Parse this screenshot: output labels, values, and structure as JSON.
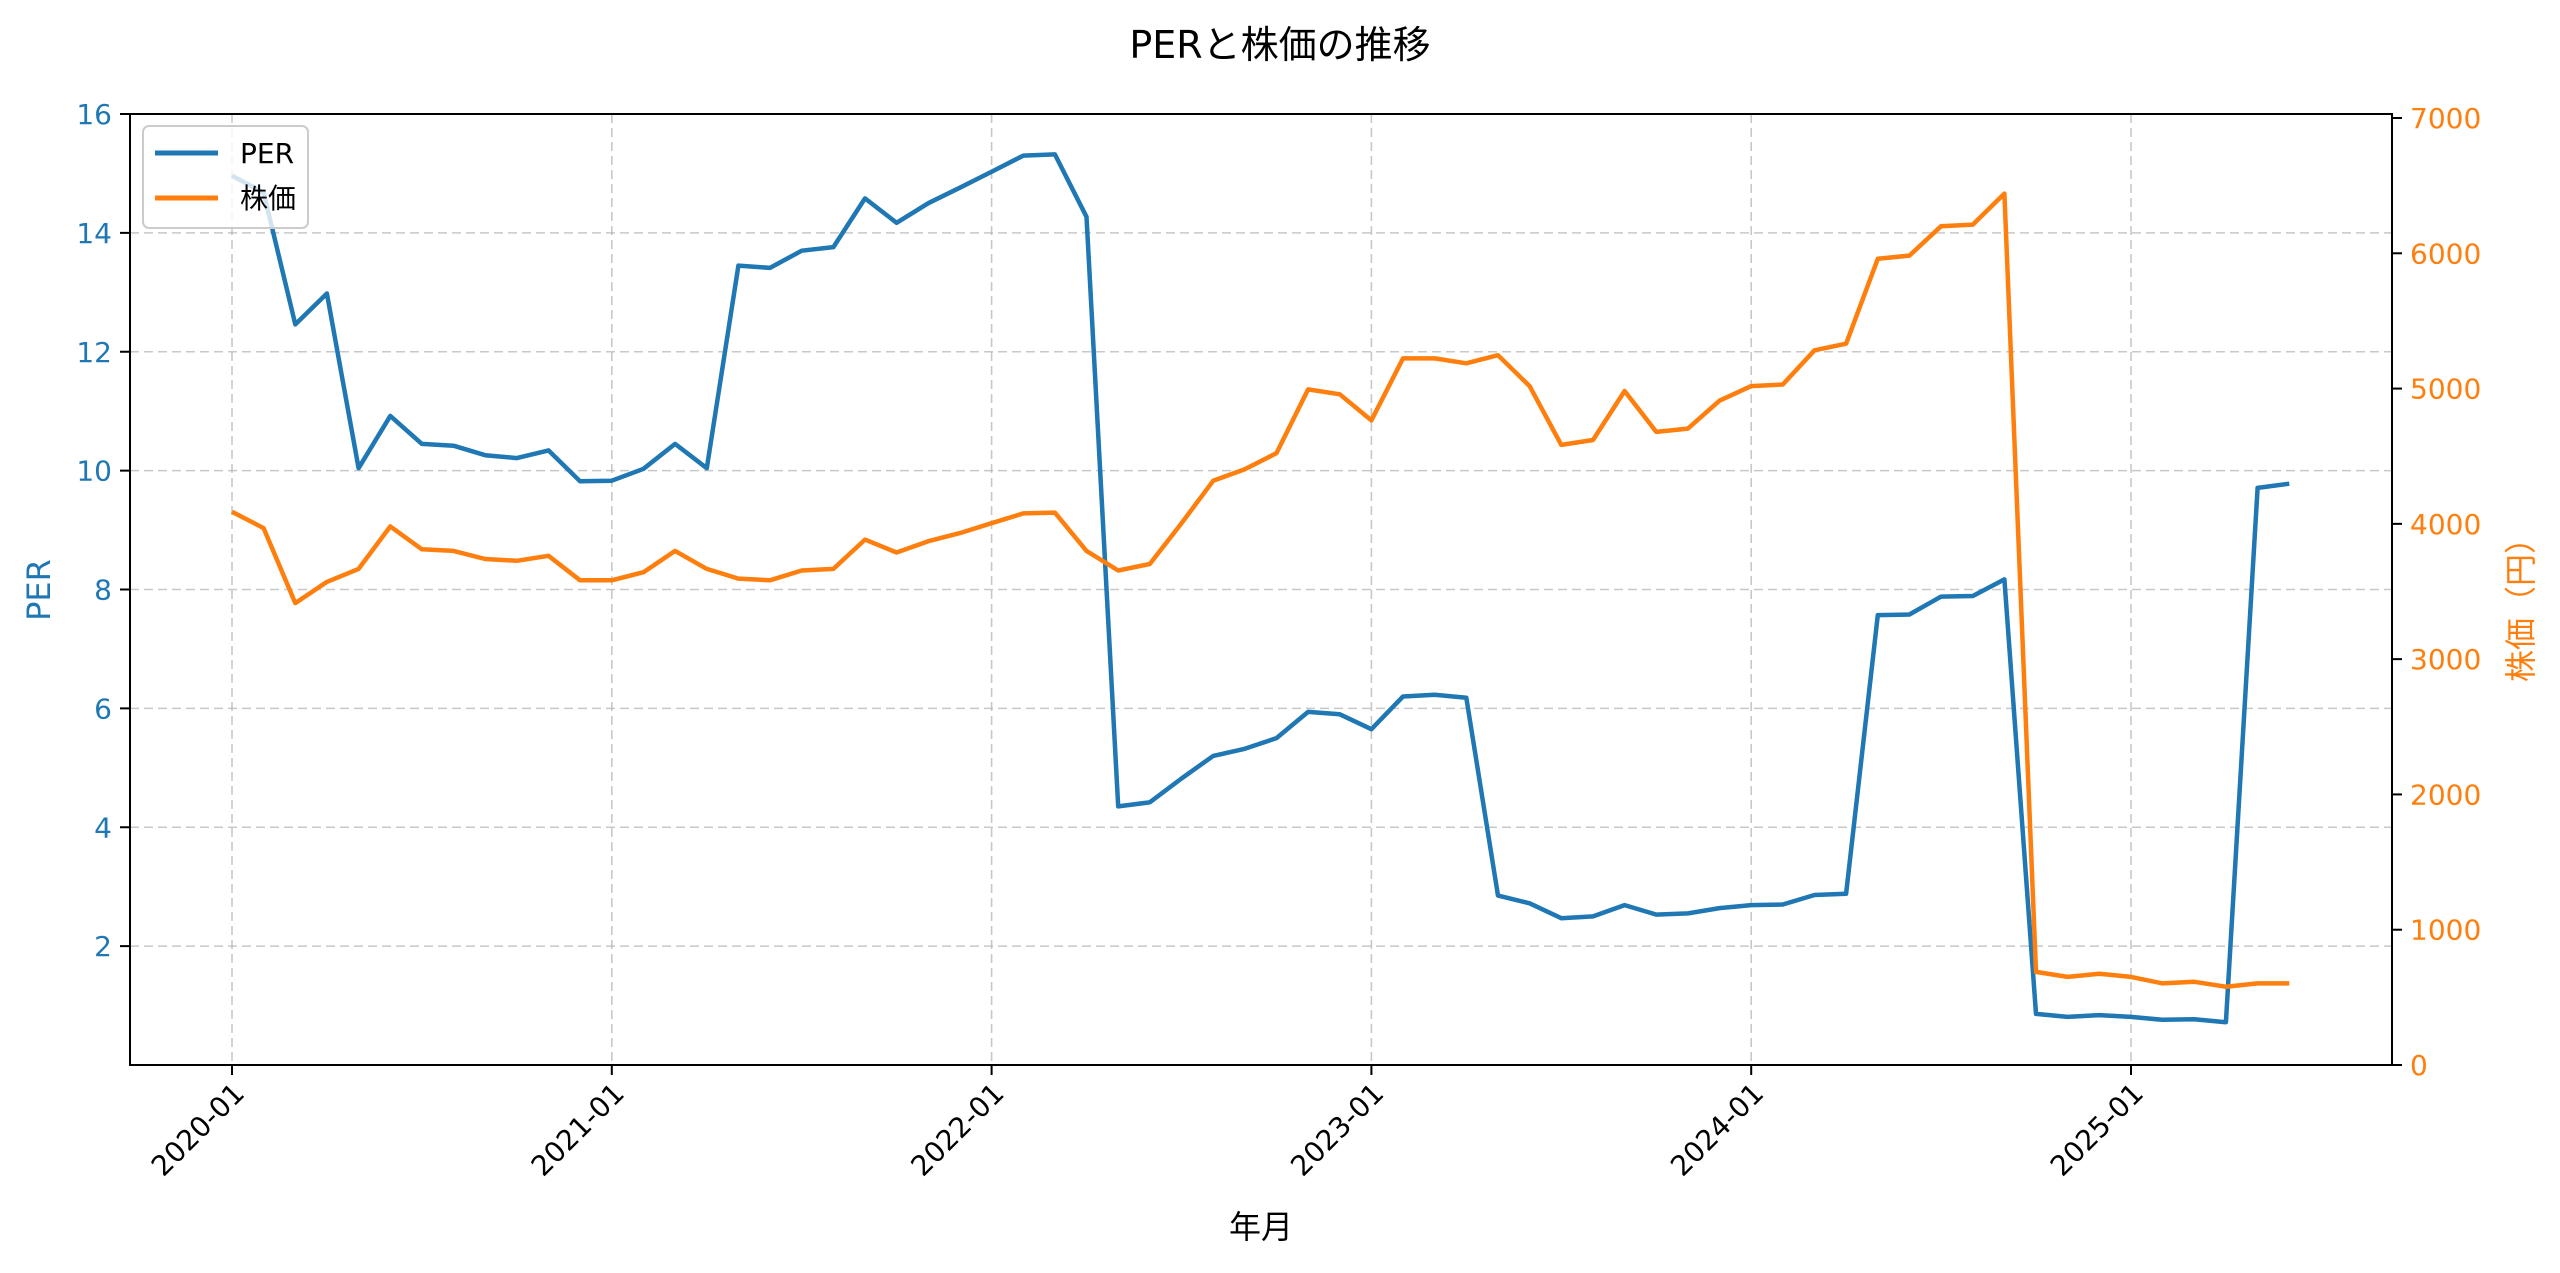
{
  "chart_data": {
    "type": "line",
    "title": "PERと株価の推移",
    "xlabel": "年月",
    "ylabel_left": "PER",
    "ylabel_right": "株価（円）",
    "x_ticks": [
      "2020-01",
      "2021-01",
      "2022-01",
      "2023-01",
      "2024-01",
      "2025-01"
    ],
    "ylim_left": [
      0,
      16
    ],
    "yticks_left": [
      2,
      4,
      6,
      8,
      10,
      12,
      14,
      16
    ],
    "ylim_right": [
      0,
      7000
    ],
    "yticks_right": [
      0,
      1000,
      2000,
      3000,
      4000,
      5000,
      6000,
      7000
    ],
    "grid": true,
    "legend_position": "upper left",
    "colors": {
      "per": "#1f77b4",
      "price": "#ff7f0e"
    },
    "x": [
      "2020-01",
      "2020-02",
      "2020-03",
      "2020-04",
      "2020-05",
      "2020-06",
      "2020-07",
      "2020-08",
      "2020-09",
      "2020-10",
      "2020-11",
      "2020-12",
      "2021-01",
      "2021-02",
      "2021-03",
      "2021-04",
      "2021-05",
      "2021-06",
      "2021-07",
      "2021-08",
      "2021-09",
      "2021-10",
      "2021-11",
      "2021-12",
      "2022-01",
      "2022-02",
      "2022-03",
      "2022-04",
      "2022-05",
      "2022-06",
      "2022-07",
      "2022-08",
      "2022-09",
      "2022-10",
      "2022-11",
      "2022-12",
      "2023-01",
      "2023-02",
      "2023-03",
      "2023-04",
      "2023-05",
      "2023-06",
      "2023-07",
      "2023-08",
      "2023-09",
      "2023-10",
      "2023-11",
      "2023-12",
      "2024-01",
      "2024-02",
      "2024-03",
      "2024-04",
      "2024-05",
      "2024-06",
      "2024-07",
      "2024-08",
      "2024-09",
      "2024-10",
      "2024-11",
      "2024-12",
      "2025-01",
      "2025-02",
      "2025-03",
      "2025-04",
      "2025-05",
      "2025-06"
    ],
    "series": [
      {
        "name": "PER",
        "axis": "left",
        "values": [
          14.96,
          14.68,
          12.46,
          12.98,
          10.04,
          10.92,
          10.45,
          10.42,
          10.26,
          10.21,
          10.34,
          9.82,
          9.83,
          10.03,
          10.45,
          10.04,
          13.45,
          13.41,
          13.7,
          13.76,
          14.58,
          14.17,
          14.5,
          14.76,
          15.03,
          15.3,
          15.32,
          14.27,
          4.35,
          4.42,
          4.82,
          5.2,
          5.32,
          5.5,
          5.94,
          5.9,
          5.65,
          6.2,
          6.23,
          6.18,
          2.85,
          2.72,
          2.47,
          2.5,
          2.69,
          2.53,
          2.55,
          2.64,
          2.69,
          2.7,
          2.86,
          2.88,
          7.57,
          7.58,
          7.88,
          7.89,
          8.17,
          0.86,
          0.81,
          0.84,
          0.81,
          0.76,
          0.77,
          0.72,
          9.71,
          9.78
        ]
      },
      {
        "name": "株価",
        "axis": "right",
        "values": [
          4090,
          3969,
          3414,
          3571,
          3667,
          3981,
          3812,
          3800,
          3740,
          3727,
          3764,
          3583,
          3583,
          3643,
          3800,
          3667,
          3595,
          3583,
          3655,
          3667,
          3884,
          3788,
          3872,
          3932,
          4005,
          4077,
          4083,
          3800,
          3655,
          3703,
          4005,
          4318,
          4403,
          4523,
          4994,
          4958,
          4765,
          5223,
          5223,
          5187,
          5247,
          5018,
          4584,
          4620,
          4982,
          4680,
          4704,
          4910,
          5018,
          5030,
          5283,
          5332,
          5959,
          5983,
          6200,
          6212,
          6441,
          688,
          651,
          675,
          651,
          603,
          615,
          579,
          603,
          603
        ]
      }
    ]
  }
}
